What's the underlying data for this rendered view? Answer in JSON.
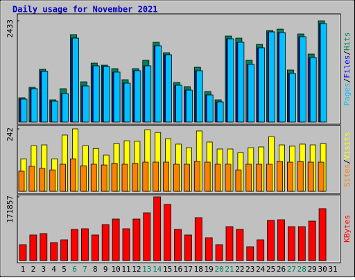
{
  "chart_data": [
    {
      "type": "bar",
      "title": "Daily usage for November 2021",
      "ylim": [
        0,
        2433
      ],
      "yticks": [
        2433
      ],
      "legend_separator": "/",
      "series": [
        {
          "name": "Hits",
          "color": "#00805c",
          "values": [
            583,
            833,
            1266,
            533,
            800,
            2100,
            966,
            1416,
            1366,
            1283,
            1016,
            1283,
            1483,
            1916,
            1666,
            950,
            850,
            1316,
            733,
            533,
            2066,
            2016,
            1483,
            1866,
            2200,
            2233,
            1250,
            2116,
            1633,
            2433,
            null
          ]
        },
        {
          "name": "Files",
          "color": "#0000ff",
          "values": [
            550,
            800,
            1216,
            500,
            683,
            2016,
            866,
            1350,
            1333,
            1200,
            933,
            1233,
            1350,
            1833,
            1616,
            883,
            766,
            1233,
            650,
            483,
            2000,
            1916,
            1383,
            1783,
            2166,
            2150,
            1166,
            2050,
            1550,
            2366,
            null
          ]
        },
        {
          "name": "Pages",
          "color": "#00c0ff",
          "values": [
            550,
            800,
            1216,
            500,
            683,
            2016,
            866,
            1350,
            1333,
            1200,
            933,
            1233,
            1350,
            1833,
            1616,
            883,
            766,
            1233,
            650,
            483,
            2000,
            1916,
            1383,
            1783,
            2166,
            2150,
            1166,
            2050,
            1550,
            2366,
            null
          ]
        }
      ]
    },
    {
      "type": "bar",
      "ylim": [
        0,
        242
      ],
      "yticks": [
        242
      ],
      "legend_separator": "/",
      "series": [
        {
          "name": "Visits",
          "color": "#ffff00",
          "values": [
            126,
            177,
            180,
            126,
            218,
            242,
            177,
            166,
            140,
            185,
            196,
            194,
            239,
            228,
            204,
            183,
            169,
            234,
            191,
            164,
            164,
            150,
            169,
            172,
            212,
            180,
            175,
            183,
            180,
            185,
            null
          ]
        },
        {
          "name": "Sites",
          "color": "#ff8000",
          "values": [
            78,
            97,
            89,
            83,
            105,
            126,
            99,
            105,
            102,
            108,
            105,
            108,
            113,
            113,
            113,
            105,
            105,
            116,
            113,
            105,
            105,
            83,
            105,
            105,
            105,
            116,
            113,
            116,
            113,
            113,
            null
          ]
        }
      ]
    },
    {
      "type": "bar",
      "ylim": [
        0,
        171857
      ],
      "yticks": [
        171857
      ],
      "categories": [
        "1",
        "2",
        "3",
        "4",
        "5",
        "6",
        "7",
        "8",
        "9",
        "10",
        "11",
        "12",
        "13",
        "14",
        "15",
        "16",
        "17",
        "18",
        "19",
        "20",
        "21",
        "22",
        "23",
        "24",
        "25",
        "26",
        "27",
        "28",
        "29",
        "30",
        "31"
      ],
      "category_colors": [
        "#000000",
        "#000000",
        "#000000",
        "#000000",
        "#000000",
        "#00805c",
        "#00805c",
        "#000000",
        "#000000",
        "#000000",
        "#000000",
        "#000000",
        "#00805c",
        "#00805c",
        "#000000",
        "#000000",
        "#000000",
        "#000000",
        "#000000",
        "#00805c",
        "#00805c",
        "#000000",
        "#000000",
        "#000000",
        "#000000",
        "#000000",
        "#00805c",
        "#00805c",
        "#000000",
        "#000000",
        "#000000"
      ],
      "series": [
        {
          "name": "KBytes",
          "color": "#ff0000",
          "values": [
            42964,
            69116,
            72852,
            48568,
            56040,
            84060,
            85928,
            69116,
            97136,
            112080,
            85928,
            112080,
            128892,
            171857,
            151308,
            84060,
            69116,
            115816,
            61644,
            42964,
            91532,
            84060,
            37360,
            56040,
            108344,
            110212,
            91532,
            91532,
            106476,
            140100,
            null
          ]
        }
      ]
    }
  ]
}
